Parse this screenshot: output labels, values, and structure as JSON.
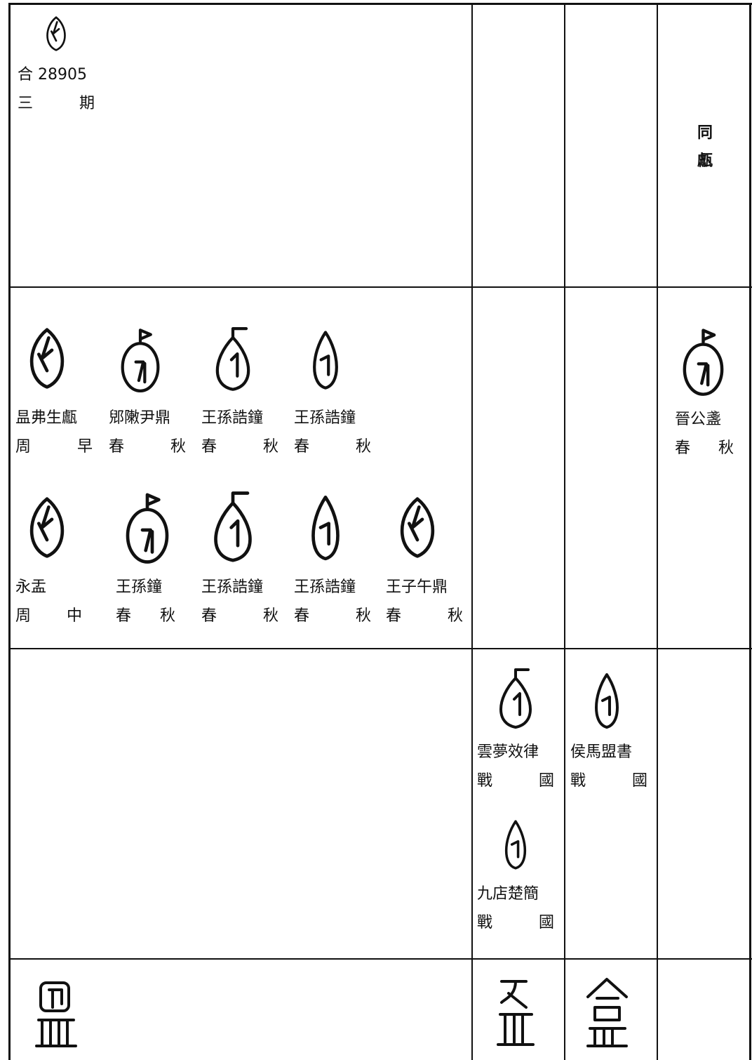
{
  "sections": [
    {
      "main": [
        {
          "source": "合 28905",
          "period": "三期"
        }
      ],
      "side": [
        "同",
        "甗"
      ]
    },
    {
      "main": [
        {
          "source": "昷弗生甗",
          "period": "周早"
        },
        {
          "source": "郳敶尹鼎",
          "period": "春秋"
        },
        {
          "source": "王孫誥鐘",
          "period": "春秋"
        },
        {
          "source": "王孫誥鐘",
          "period": "春秋"
        },
        {
          "source": "永盂",
          "period": "周中"
        },
        {
          "source": "王孫鐘",
          "period": "春秋"
        },
        {
          "source": "王孫誥鐘",
          "period": "春秋"
        },
        {
          "source": "王孫誥鐘",
          "period": "春秋"
        },
        {
          "source": "王子午鼎",
          "period": "春秋"
        }
      ],
      "col4": [
        {
          "source": "晉公盞",
          "period": "春秋"
        }
      ]
    },
    {
      "col2": [
        {
          "source": "雲夢效律",
          "period": "戰國"
        },
        {
          "source": "九店楚簡",
          "period": "戰國"
        }
      ],
      "col3": [
        {
          "source": "侯馬盟書",
          "period": "戰國"
        }
      ]
    }
  ]
}
